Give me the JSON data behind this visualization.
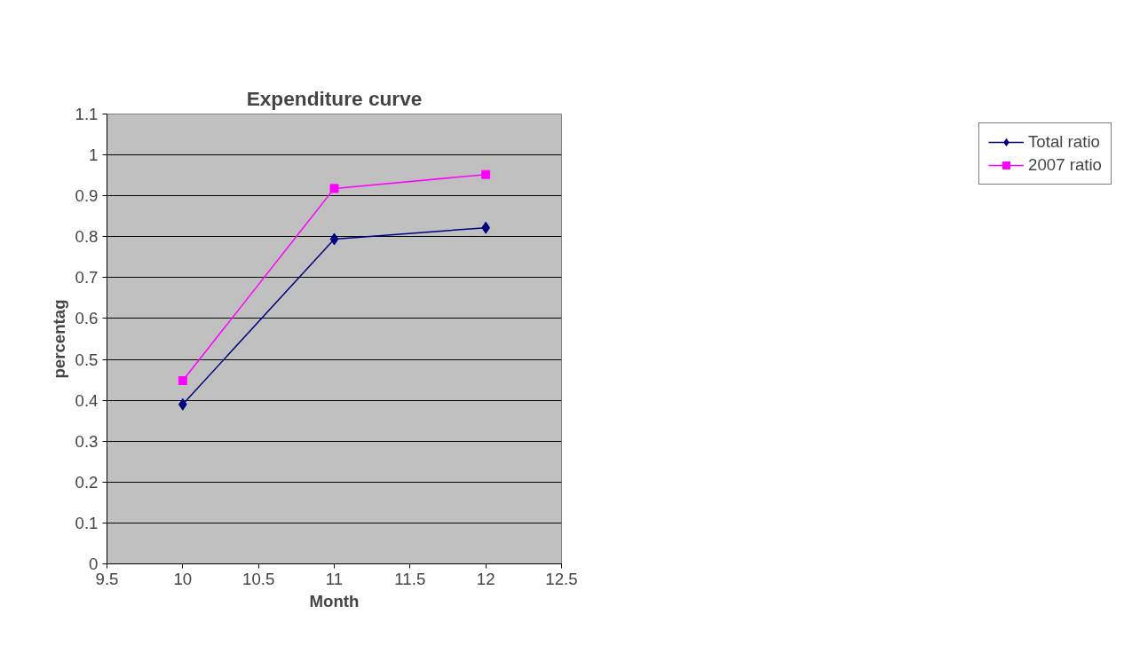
{
  "chart_data": {
    "type": "line",
    "title": "Expenditure curve",
    "xlabel": "Month",
    "ylabel": "percentag",
    "x": [
      10,
      11,
      12
    ],
    "series": [
      {
        "name": "Total ratio",
        "color": "#000080",
        "values": [
          0.39,
          0.794,
          0.822
        ],
        "marker": "diamond"
      },
      {
        "name": "2007 ratio",
        "color": "#ff00ff",
        "values": [
          0.448,
          0.918,
          0.952
        ],
        "marker": "square"
      }
    ],
    "xlim": [
      9.5,
      12.5
    ],
    "xticks": [
      9.5,
      10,
      10.5,
      11,
      11.5,
      12,
      12.5
    ],
    "ylim": [
      0,
      1.1
    ],
    "yticks": [
      0,
      {
        "value": 0.1,
        "label": "0.1"
      },
      {
        "value": 0.2,
        "label": "0.2"
      },
      {
        "value": 0.3,
        "label": "0.3"
      },
      {
        "value": 0.4,
        "label": "0.4"
      },
      {
        "value": 0.5,
        "label": "0.5"
      },
      {
        "value": 0.6,
        "label": "0.6"
      },
      {
        "value": 0.7,
        "label": "0.7"
      },
      {
        "value": 0.8,
        "label": "0.8"
      },
      {
        "value": 0.9,
        "label": "0.9"
      },
      1,
      {
        "value": 1.1,
        "label": "1.1"
      }
    ],
    "grid": "y",
    "legend": "right",
    "line_style": "solid"
  }
}
